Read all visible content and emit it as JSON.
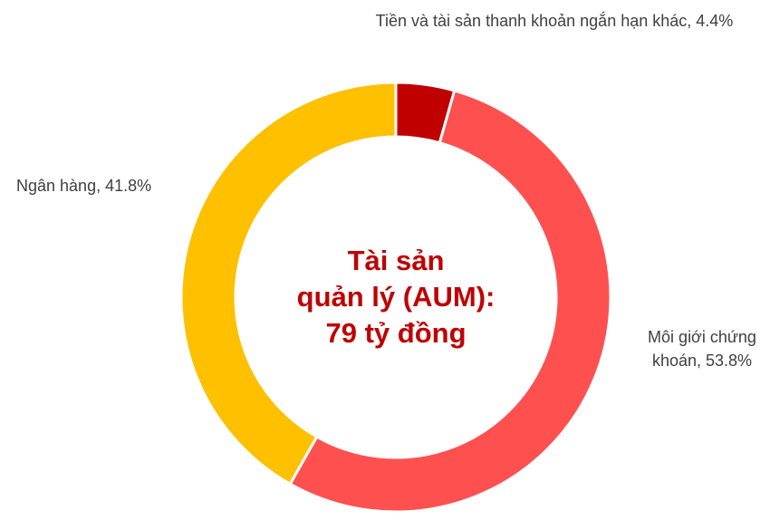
{
  "chart_data": {
    "type": "donut",
    "categories": [
      "Tiền và tài sản thanh khoản ngắn hạn khác",
      "Môi giới chứng khoán",
      "Ngân hàng"
    ],
    "values": [
      4.4,
      53.8,
      41.8
    ],
    "value_labels": [
      "4.4%",
      "53.8%",
      "41.8%"
    ],
    "colors": [
      "#c00000",
      "#ff5050",
      "#ffc000"
    ],
    "center_text": [
      "Tài sản",
      "quản lý (AUM):",
      "79 tỷ đồng"
    ],
    "center_color": "#c00000"
  }
}
